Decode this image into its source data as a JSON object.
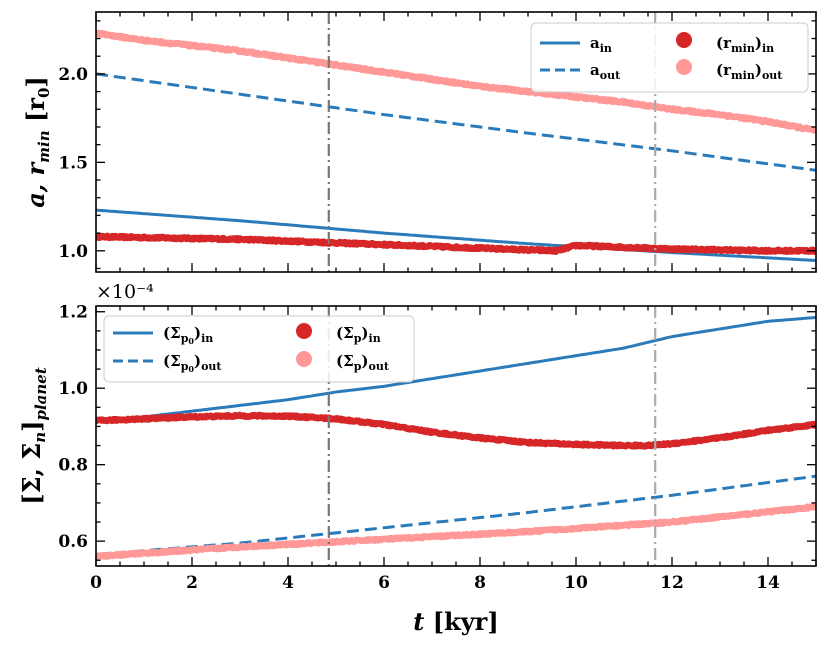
{
  "chart_data": [
    {
      "type": "line",
      "panel": "top",
      "ylabel": "a, r_min [r₀]",
      "xlim": [
        0,
        15
      ],
      "ylim": [
        0.88,
        2.35
      ],
      "yticks": [
        1.0,
        1.5,
        2.0
      ],
      "ytick_labels": [
        "1.0",
        "1.5",
        "2.0"
      ],
      "x_tick_labels_shown": false,
      "vlines": [
        4.85,
        11.65
      ],
      "legend_position": "top-right",
      "series": [
        {
          "name": "a_in",
          "style": "solid",
          "color": "#2b7bba",
          "x": [
            0,
            3,
            6,
            9,
            12,
            15
          ],
          "y": [
            1.23,
            1.17,
            1.1,
            1.04,
            0.99,
            0.945
          ]
        },
        {
          "name": "a_out",
          "style": "dashed",
          "color": "#2b7bba",
          "x": [
            0,
            3,
            6,
            9,
            12,
            15
          ],
          "y": [
            2.0,
            1.885,
            1.77,
            1.665,
            1.565,
            1.455
          ]
        },
        {
          "name": "(r_min)_in",
          "style": "markers",
          "color": "#d62728",
          "x": [
            0,
            1,
            2,
            3,
            4,
            5,
            6,
            7,
            8,
            9,
            9.6,
            10,
            11,
            12,
            13,
            14,
            15
          ],
          "y": [
            1.08,
            1.075,
            1.07,
            1.065,
            1.055,
            1.045,
            1.035,
            1.025,
            1.015,
            1.005,
            1.0,
            1.03,
            1.02,
            1.01,
            1.005,
            1.0,
            1.0
          ]
        },
        {
          "name": "(r_min)_out",
          "style": "markers",
          "color": "#ff9896",
          "x": [
            0,
            1,
            2,
            3,
            4,
            5,
            6,
            7,
            8,
            9,
            10,
            11,
            12,
            13,
            14,
            15
          ],
          "y": [
            2.23,
            2.19,
            2.16,
            2.13,
            2.09,
            2.05,
            2.01,
            1.97,
            1.93,
            1.9,
            1.87,
            1.84,
            1.8,
            1.77,
            1.73,
            1.68
          ]
        }
      ]
    },
    {
      "type": "line",
      "panel": "bottom",
      "ylabel": "[Σ, Σ_n]_planet",
      "xlabel": "t [kyr]",
      "exponent_label": "×10⁻⁴",
      "xlim": [
        0,
        15
      ],
      "ylim": [
        0.535,
        1.215
      ],
      "xticks": [
        0,
        2,
        4,
        6,
        8,
        10,
        12,
        14
      ],
      "xtick_labels": [
        "0",
        "2",
        "4",
        "6",
        "8",
        "10",
        "12",
        "14"
      ],
      "yticks": [
        0.6,
        0.8,
        1.0,
        1.2
      ],
      "ytick_labels": [
        "0.6",
        "0.8",
        "1.0",
        "1.2"
      ],
      "vlines": [
        4.85,
        11.65
      ],
      "legend_position": "top-left",
      "series": [
        {
          "name": "(Σ_p0)_in",
          "style": "solid",
          "color": "#2b7bba",
          "x": [
            0,
            1,
            2,
            3,
            4,
            5,
            6,
            7,
            8,
            9,
            10,
            11,
            12,
            13,
            14,
            15
          ],
          "y": [
            0.915,
            0.925,
            0.94,
            0.955,
            0.97,
            0.99,
            1.005,
            1.025,
            1.045,
            1.065,
            1.085,
            1.105,
            1.135,
            1.155,
            1.175,
            1.185
          ]
        },
        {
          "name": "(Σ_p0)_out",
          "style": "dashed",
          "color": "#2b7bba",
          "x": [
            0,
            3,
            6,
            9,
            12,
            15
          ],
          "y": [
            0.565,
            0.595,
            0.635,
            0.675,
            0.72,
            0.77
          ]
        },
        {
          "name": "(Σ_p)_in",
          "style": "markers",
          "color": "#d62728",
          "x": [
            0,
            1,
            2,
            3,
            4,
            5,
            6,
            7,
            8,
            9,
            10,
            11,
            11.5,
            12,
            13,
            14,
            15
          ],
          "y": [
            0.915,
            0.92,
            0.925,
            0.928,
            0.927,
            0.92,
            0.905,
            0.885,
            0.87,
            0.858,
            0.853,
            0.85,
            0.85,
            0.855,
            0.87,
            0.89,
            0.905
          ]
        },
        {
          "name": "(Σ_p)_out",
          "style": "markers",
          "color": "#ff9896",
          "x": [
            0,
            3,
            6,
            9,
            12,
            15
          ],
          "y": [
            0.56,
            0.585,
            0.605,
            0.625,
            0.65,
            0.69
          ]
        }
      ]
    }
  ],
  "legend_labels": {
    "a_in": "a",
    "a_in_sub": "in",
    "a_out": "a",
    "a_out_sub": "out",
    "rmin_in": "(r",
    "rmin_in_sub": "min",
    "rmin_in_close": ")",
    "rmin_in_sub2": "in",
    "rmin_out": "(r",
    "rmin_out_sub": "min",
    "rmin_out_close": ")",
    "rmin_out_sub2": "out",
    "sp0_in": "(Σ",
    "sp0_in_sub": "p",
    "sp0_in_subsub": "0",
    "sp0_in_close": ")",
    "sp0_in_sub2": "in",
    "sp0_out": "(Σ",
    "sp0_out_sub": "p",
    "sp0_out_subsub": "0",
    "sp0_out_close": ")",
    "sp0_out_sub2": "out",
    "sp_in": "(Σ",
    "sp_in_sub": "p",
    "sp_in_close": ")",
    "sp_in_sub2": "in",
    "sp_out": "(Σ",
    "sp_out_sub": "p",
    "sp_out_close": ")",
    "sp_out_sub2": "out"
  }
}
